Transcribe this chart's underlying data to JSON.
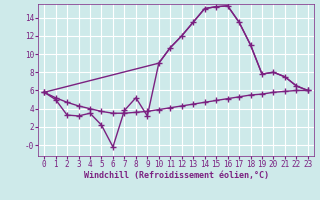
{
  "background_color": "#ceeaea",
  "grid_color": "#ffffff",
  "line_color": "#7b2181",
  "xlabel": "Windchill (Refroidissement éolien,°C)",
  "xlim": [
    -0.5,
    23.5
  ],
  "ylim": [
    -1.2,
    15.5
  ],
  "xticks": [
    0,
    1,
    2,
    3,
    4,
    5,
    6,
    7,
    8,
    9,
    10,
    11,
    12,
    13,
    14,
    15,
    16,
    17,
    18,
    19,
    20,
    21,
    22,
    23
  ],
  "yticks": [
    0,
    2,
    4,
    6,
    8,
    10,
    12,
    14
  ],
  "ytick_labels": [
    "-0",
    "2",
    "4",
    "6",
    "8",
    "10",
    "12",
    "14"
  ],
  "line_main_x": [
    0,
    1,
    2,
    3,
    4,
    5,
    6,
    7,
    8,
    9,
    10,
    11,
    12,
    13,
    14,
    15,
    16,
    17,
    18,
    19,
    20,
    21,
    22,
    23
  ],
  "line_main_y": [
    5.8,
    5.0,
    3.3,
    3.2,
    3.5,
    2.2,
    -0.2,
    3.8,
    5.2,
    3.2,
    9.0,
    10.7,
    12.0,
    13.5,
    15.0,
    15.2,
    15.3,
    13.5,
    11.0,
    7.8,
    8.0,
    7.5,
    6.5,
    6.0
  ],
  "line_flat_x": [
    0,
    1,
    2,
    3,
    4,
    5,
    6,
    7,
    8,
    9,
    10,
    11,
    12,
    13,
    14,
    15,
    16,
    17,
    18,
    19,
    20,
    21,
    22,
    23
  ],
  "line_flat_y": [
    5.8,
    5.2,
    4.7,
    4.3,
    4.0,
    3.7,
    3.5,
    3.5,
    3.6,
    3.7,
    3.9,
    4.1,
    4.3,
    4.5,
    4.7,
    4.9,
    5.1,
    5.3,
    5.5,
    5.6,
    5.8,
    5.9,
    6.0,
    6.0
  ],
  "line_upper_x": [
    0,
    10,
    11,
    12,
    13,
    14,
    15,
    16,
    17,
    18,
    19,
    20,
    21,
    22,
    23
  ],
  "line_upper_y": [
    5.8,
    9.0,
    10.7,
    12.0,
    13.5,
    15.0,
    15.2,
    15.3,
    13.5,
    11.0,
    7.8,
    8.0,
    7.5,
    6.5,
    6.0
  ],
  "marker": "+",
  "marker_size": 5,
  "linewidth": 1.0,
  "tick_fontsize": 5.5,
  "label_fontsize": 6.0
}
